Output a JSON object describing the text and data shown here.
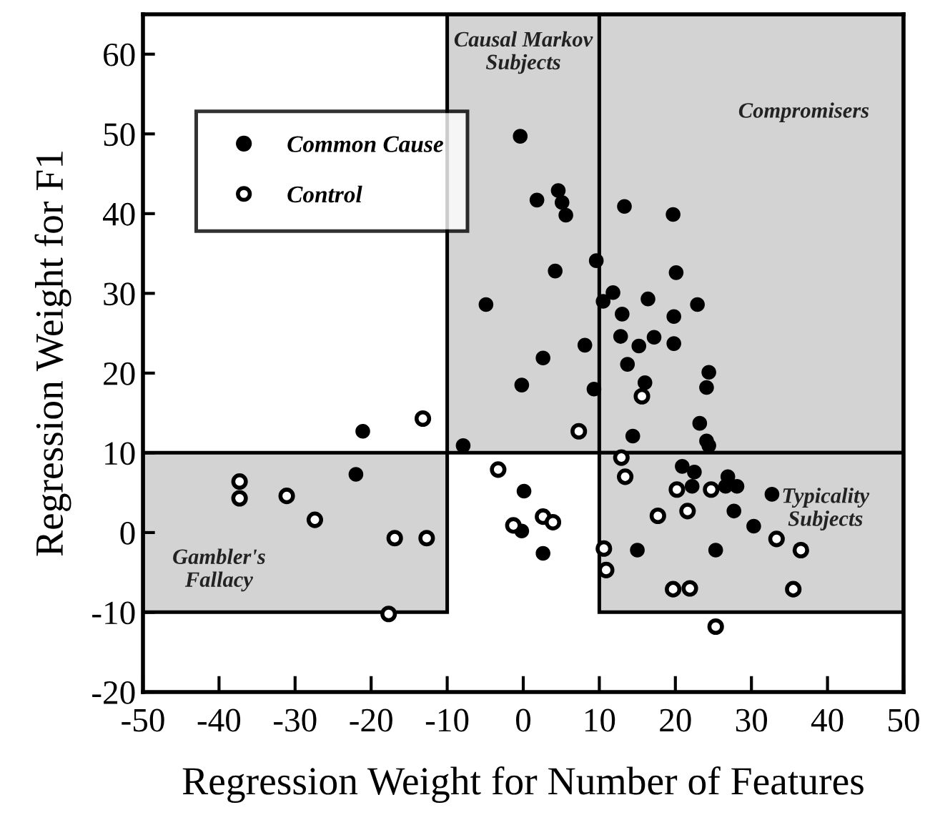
{
  "chart_data": {
    "type": "scatter",
    "xlabel": "Regression Weight for Number of Features",
    "ylabel": "Regression Weight for F1",
    "xlim": [
      -50,
      50
    ],
    "xticks": [
      -50,
      -40,
      -30,
      -20,
      -10,
      0,
      10,
      20,
      30,
      40,
      50
    ],
    "ylim": [
      -20,
      65
    ],
    "yticks": [
      -20,
      -10,
      0,
      10,
      20,
      30,
      40,
      50,
      60
    ],
    "grid": false,
    "legend": "top left",
    "marker": "circle",
    "annotations": [
      "Causal Markov\nSubjects",
      "Compromisers",
      "Gambler's\nFallacy",
      "Typicality\nSubjects"
    ],
    "series": [
      {
        "name": "Common Cause",
        "color": "#000000",
        "x": [
          -0.4,
          1.8,
          4.6,
          5.1,
          5.6,
          13.3,
          19.7,
          4.2,
          9.6,
          20.1,
          -4.9,
          10.5,
          11.8,
          16.4,
          22.9,
          13.0,
          19.8,
          12.8,
          15.2,
          17.2,
          19.8,
          8.1,
          2.6,
          13.7,
          -0.2,
          16.0,
          24.4,
          24.1,
          9.3,
          23.2,
          14.4,
          24.1,
          24.4,
          -7.9,
          -21.1,
          -22.0,
          20.9,
          22.5,
          22.2,
          26.9,
          26.6,
          28.1,
          32.7,
          27.7,
          30.3,
          0.1,
          -0.2,
          2.6,
          15.0,
          25.3
        ],
        "values": [
          49.7,
          41.7,
          42.9,
          41.4,
          39.8,
          40.9,
          39.9,
          32.8,
          34.1,
          32.6,
          28.6,
          29.0,
          30.1,
          29.3,
          28.6,
          27.4,
          27.1,
          24.6,
          23.4,
          24.5,
          23.7,
          23.5,
          21.9,
          21.1,
          18.5,
          18.8,
          20.1,
          18.2,
          18.0,
          13.7,
          12.1,
          11.5,
          10.9,
          10.9,
          12.7,
          7.3,
          8.3,
          7.6,
          5.8,
          7.0,
          5.8,
          5.8,
          4.8,
          2.7,
          0.8,
          5.2,
          0.2,
          -2.6,
          -2.2,
          -2.2
        ]
      },
      {
        "name": "Control",
        "color": "#000000",
        "x": [
          -13.2,
          -37.3,
          -37.3,
          -31.1,
          -27.4,
          -16.9,
          -12.7,
          -17.7,
          7.3,
          15.6,
          -3.3,
          -1.3,
          2.6,
          3.9,
          12.9,
          13.4,
          20.2,
          24.7,
          21.6,
          17.7,
          10.6,
          10.9,
          19.7,
          21.9,
          33.3,
          36.5,
          35.5,
          25.3
        ],
        "values": [
          14.3,
          6.4,
          4.3,
          4.6,
          1.6,
          -0.7,
          -0.7,
          -10.2,
          12.7,
          17.1,
          7.9,
          0.9,
          2.0,
          1.3,
          9.4,
          7.0,
          5.4,
          5.4,
          2.7,
          2.1,
          -2.0,
          -4.7,
          -7.1,
          -7.0,
          -0.8,
          -2.2,
          -7.1,
          -11.8
        ]
      }
    ]
  }
}
